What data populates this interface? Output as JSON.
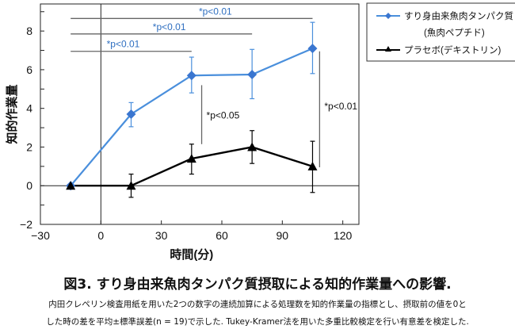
{
  "chart_data": {
    "type": "line",
    "xlabel": "時間(分)",
    "ylabel": "知的作業量",
    "xlim": [
      -30,
      128
    ],
    "ylim": [
      -2,
      9.4
    ],
    "xticks": [
      -30,
      0,
      30,
      60,
      90,
      120
    ],
    "yticks": [
      -2,
      0,
      2,
      4,
      6,
      8
    ],
    "x": [
      -15,
      15,
      45,
      75,
      105
    ],
    "series": [
      {
        "name": "すり身由来魚肉タンパク質",
        "name2": "(魚肉ペプチド)",
        "color": "#4a8fdc",
        "marker": "diamond",
        "values": [
          0,
          3.7,
          5.7,
          5.75,
          7.1
        ],
        "err_low": [
          0,
          3.05,
          4.8,
          4.5,
          5.8
        ],
        "err_high": [
          0,
          4.3,
          6.65,
          7.05,
          8.45
        ]
      },
      {
        "name": "プラセボ(デキストリン)",
        "color": "#000000",
        "marker": "triangle",
        "values": [
          0,
          0,
          1.4,
          2.0,
          1.0
        ],
        "err_low": [
          0,
          -0.6,
          0.6,
          1.15,
          -0.35
        ],
        "err_high": [
          0,
          0.6,
          2.15,
          2.85,
          2.3
        ]
      }
    ],
    "annotations": [
      {
        "text": "*p<0.01",
        "type": "hbracket",
        "from": -15,
        "to": 105,
        "y": 8.65,
        "color": "#2f6fc0"
      },
      {
        "text": "*p<0.01",
        "type": "hbracket",
        "from": -15,
        "to": 75,
        "y": 7.85,
        "color": "#2f6fc0"
      },
      {
        "text": "*p<0.01",
        "type": "hbracket",
        "from": -15,
        "to": 45,
        "y": 6.95,
        "color": "#2f6fc0"
      },
      {
        "text": "*p<0.05",
        "type": "vbracket",
        "x": 50,
        "from": 2.15,
        "to": 5.2,
        "color": "#000000"
      },
      {
        "text": "*p<0.01",
        "type": "vbracket",
        "x": 108.5,
        "from": 0.95,
        "to": 6.95,
        "color": "#000000"
      }
    ],
    "grid": false,
    "legend": "top-right"
  },
  "caption": {
    "title": "図3. すり身由来魚肉タンパク質摂取による知的作業量への影響.",
    "line1": "内田クレペリン検査用紙を用いた2つの数字の連続加算による処理数を知的作業量の指標とし、摂取前の値を0と",
    "line2": "した時の差を平均±標準誤差(n = 19)で示した. Tukey-Kramer法を用いた多重比較検定を行い有意差を検定した."
  }
}
